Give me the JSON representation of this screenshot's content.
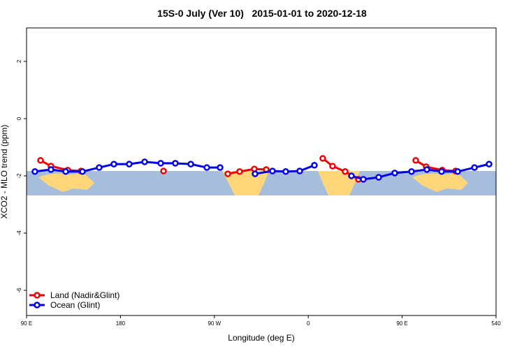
{
  "chart_data": {
    "type": "line",
    "title": "15S-0 July (Ver 10)   2015-01-01 to 2020-12-18",
    "x_label": "Longitude (deg E)",
    "y_label": "XCO2 - MLO trend (ppm)",
    "xlim": [
      90,
      540
    ],
    "ylim": [
      -6.88,
      3.17
    ],
    "xticks": [
      {
        "value": 90,
        "label": "90 E"
      },
      180,
      {
        "value": 270,
        "label": "90 W"
      },
      {
        "value": 360,
        "label": "0"
      },
      {
        "value": 450,
        "label": "90 E"
      },
      540
    ],
    "yticks": [
      -6,
      -4,
      -2,
      0,
      2
    ],
    "legend": "bottomleft",
    "series": [
      {
        "name": "Land (Nadir&Glint)",
        "color": "#ee0000",
        "x": [
          103.4,
          113.4,
          129.5,
          142.2,
          null,
          221.3,
          null,
          282.9,
          294.2,
          308.3,
          319.7,
          null,
          373.9,
          383.3,
          395.4,
          408.1,
          null,
          463.0,
          473.0,
          488.4,
          501.2
        ],
        "values": [
          -1.46,
          -1.66,
          -1.8,
          -1.83,
          null,
          -1.83,
          null,
          -1.93,
          -1.85,
          -1.76,
          -1.78,
          null,
          -1.39,
          -1.66,
          -1.85,
          -2.12,
          null,
          -1.46,
          -1.68,
          -1.8,
          -1.83
        ]
      },
      {
        "name": "Ocean (Glint)",
        "color": "#0000ee",
        "x": [
          98.0,
          113.4,
          127.5,
          143.6,
          159.6,
          173.7,
          188.4,
          203.2,
          218.6,
          232.6,
          247.4,
          262.8,
          275.5,
          null,
          309.0,
          325.7,
          338.4,
          351.8,
          365.9,
          null,
          401.4,
          412.8,
          427.5,
          442.9,
          459.0,
          473.7,
          487.8,
          503.2,
          519.3,
          533.3
        ],
        "values": [
          -1.85,
          -1.78,
          -1.85,
          -1.85,
          -1.71,
          -1.59,
          -1.59,
          -1.51,
          -1.56,
          -1.56,
          -1.59,
          -1.71,
          -1.71,
          null,
          -1.93,
          -1.83,
          -1.85,
          -1.83,
          -1.63,
          null,
          -2.0,
          -2.12,
          -2.05,
          -1.9,
          -1.85,
          -1.78,
          -1.85,
          -1.85,
          -1.71,
          -1.59
        ]
      }
    ]
  }
}
